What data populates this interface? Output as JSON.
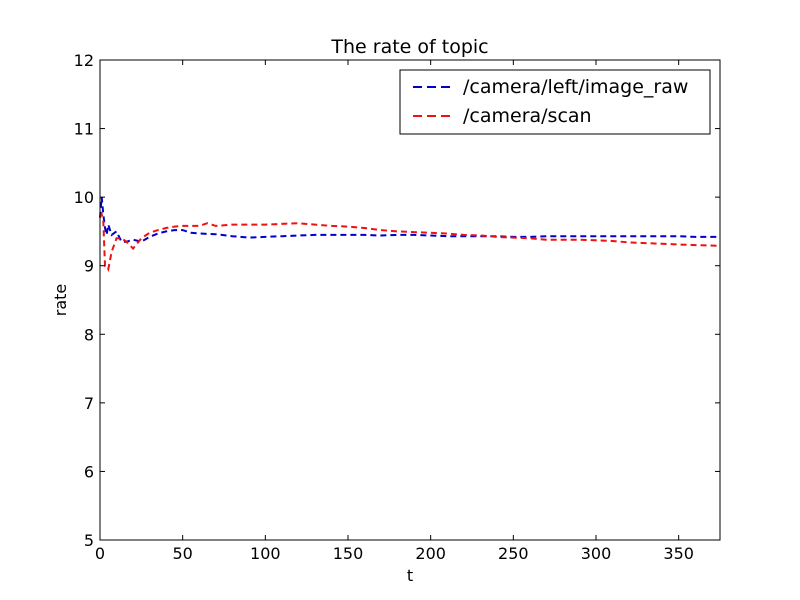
{
  "chart_data": {
    "type": "line",
    "title": "The rate of topic",
    "xlabel": "t",
    "ylabel": "rate",
    "xlim": [
      0,
      375
    ],
    "ylim": [
      5,
      12
    ],
    "xticks": [
      0,
      50,
      100,
      150,
      200,
      250,
      300,
      350
    ],
    "yticks": [
      5,
      6,
      7,
      8,
      9,
      10,
      11,
      12
    ],
    "xtick_labels": [
      "0",
      "50",
      "100",
      "150",
      "200",
      "250",
      "300",
      "350"
    ],
    "ytick_labels": [
      "5",
      "6",
      "7",
      "8",
      "9",
      "10",
      "11",
      "12"
    ],
    "grid": false,
    "legend_position": "top-right",
    "series": [
      {
        "name": "/camera/left/image_raw",
        "color": "#0000cc",
        "linestyle": "dashed",
        "x": [
          0,
          1,
          2,
          3,
          4,
          5,
          7,
          10,
          13,
          16,
          20,
          25,
          30,
          35,
          40,
          45,
          50,
          55,
          60,
          70,
          80,
          90,
          100,
          110,
          120,
          130,
          140,
          150,
          160,
          170,
          180,
          190,
          200,
          210,
          220,
          230,
          240,
          250,
          260,
          270,
          280,
          290,
          300,
          310,
          320,
          330,
          340,
          350,
          360,
          375
        ],
        "y": [
          9.7,
          10.0,
          9.75,
          9.55,
          9.45,
          9.6,
          9.45,
          9.5,
          9.35,
          9.35,
          9.38,
          9.35,
          9.42,
          9.47,
          9.5,
          9.52,
          9.52,
          9.48,
          9.47,
          9.46,
          9.43,
          9.41,
          9.42,
          9.43,
          9.44,
          9.45,
          9.45,
          9.45,
          9.45,
          9.44,
          9.45,
          9.45,
          9.44,
          9.43,
          9.43,
          9.43,
          9.43,
          9.42,
          9.42,
          9.43,
          9.43,
          9.43,
          9.43,
          9.43,
          9.43,
          9.43,
          9.43,
          9.43,
          9.42,
          9.42
        ]
      },
      {
        "name": "/camera/scan",
        "color": "#ee1111",
        "linestyle": "dashed",
        "x": [
          0,
          1,
          2,
          3,
          4,
          5,
          7,
          10,
          13,
          16,
          20,
          25,
          30,
          35,
          40,
          45,
          50,
          55,
          60,
          65,
          70,
          80,
          90,
          100,
          110,
          120,
          130,
          140,
          150,
          160,
          170,
          180,
          190,
          200,
          210,
          220,
          230,
          240,
          250,
          260,
          270,
          280,
          290,
          300,
          310,
          320,
          330,
          340,
          350,
          360,
          375
        ],
        "y": [
          9.7,
          9.75,
          9.65,
          9.0,
          9.0,
          8.95,
          9.2,
          9.4,
          9.4,
          9.35,
          9.25,
          9.4,
          9.48,
          9.52,
          9.55,
          9.57,
          9.58,
          9.58,
          9.58,
          9.62,
          9.58,
          9.6,
          9.6,
          9.6,
          9.61,
          9.62,
          9.6,
          9.58,
          9.57,
          9.55,
          9.52,
          9.5,
          9.49,
          9.48,
          9.47,
          9.45,
          9.44,
          9.42,
          9.41,
          9.4,
          9.38,
          9.38,
          9.38,
          9.37,
          9.36,
          9.34,
          9.33,
          9.32,
          9.31,
          9.3,
          9.29
        ]
      }
    ]
  }
}
